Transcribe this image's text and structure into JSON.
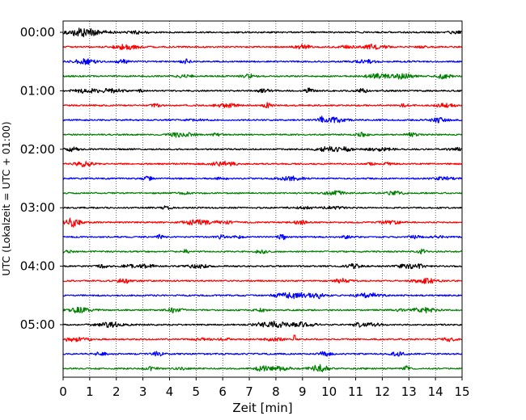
{
  "chart_data": {
    "type": "line",
    "title": "",
    "xlabel": "Zeit  [min]",
    "ylabel": "UTC (Lokalzeit = UTC + 01:00)",
    "xlim": [
      0,
      15
    ],
    "x_ticks": [
      "0",
      "1",
      "2",
      "3",
      "4",
      "5",
      "6",
      "7",
      "8",
      "9",
      "10",
      "11",
      "12",
      "13",
      "14",
      "15"
    ],
    "y_ticks": [
      {
        "label": "00:00",
        "row": 0
      },
      {
        "label": "01:00",
        "row": 4
      },
      {
        "label": "02:00",
        "row": 8
      },
      {
        "label": "03:00",
        "row": 12
      },
      {
        "label": "04:00",
        "row": 16
      },
      {
        "label": "05:00",
        "row": 20
      }
    ],
    "grid": "x-dotted",
    "rows": 24,
    "row_interval_min": 15,
    "row_colors": [
      "#000000",
      "#ff0000",
      "#0000ff",
      "#008000"
    ],
    "spikes": [
      {
        "row": 21,
        "x": 8.7,
        "amplitude": 1.0
      }
    ]
  }
}
